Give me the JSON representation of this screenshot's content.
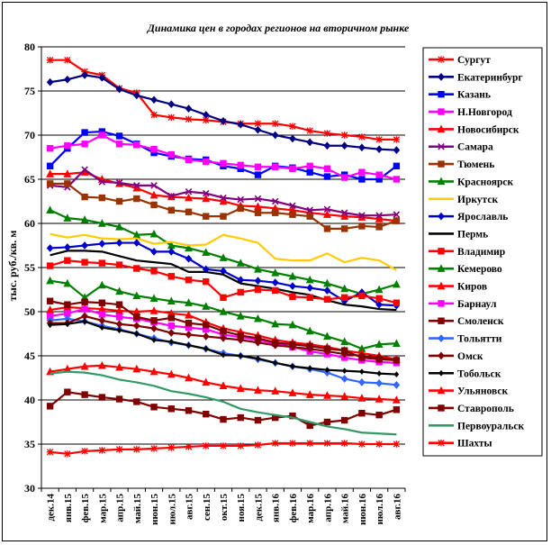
{
  "chart_data": {
    "type": "line",
    "title": "Динамика цен в городах регионов на вторичном рынке",
    "xlabel": "",
    "ylabel": "тыс. руб./кв. м",
    "ylim": [
      30,
      80
    ],
    "yticks": [
      30,
      35,
      40,
      45,
      50,
      55,
      60,
      65,
      70,
      75,
      80
    ],
    "grid": "horizontal",
    "legend_position": "right",
    "categories": [
      "дек.14",
      "янв.15",
      "фев.15",
      "мар.15",
      "апр.15",
      "май.15",
      "июн.15",
      "июл.15",
      "авг.15",
      "сен.15",
      "окт.15",
      "ноя.15",
      "дек.15",
      "янв.16",
      "фев.16",
      "мар.16",
      "апр.16",
      "май.16",
      "июн.16",
      "июл.16",
      "авг.16"
    ],
    "series": [
      {
        "name": "Сургут",
        "color": "#FF0000",
        "marker": "star",
        "values": [
          78.5,
          78.5,
          77.2,
          76.8,
          75.3,
          74.8,
          72.3,
          72.0,
          71.8,
          71.7,
          71.5,
          71.3,
          71.3,
          71.3,
          71.0,
          70.5,
          70.2,
          70.0,
          69.8,
          69.5,
          69.5
        ]
      },
      {
        "name": "Екатеринбург",
        "color": "#000080",
        "marker": "diamond",
        "values": [
          76.0,
          76.3,
          76.8,
          76.5,
          75.2,
          74.5,
          74.0,
          73.5,
          73.0,
          72.3,
          71.6,
          71.2,
          70.6,
          70.0,
          69.6,
          69.2,
          68.8,
          68.8,
          68.6,
          68.4,
          68.3
        ]
      },
      {
        "name": "Казань",
        "color": "#0000FF",
        "marker": "square",
        "values": [
          66.5,
          68.5,
          70.3,
          70.4,
          69.9,
          69.0,
          68.0,
          67.6,
          67.3,
          67.2,
          66.5,
          66.2,
          65.5,
          66.5,
          66.3,
          65.8,
          65.3,
          65.5,
          65.0,
          65.0,
          66.5
        ]
      },
      {
        "name": "Н.Новгород",
        "color": "#FF00FF",
        "marker": "square",
        "values": [
          68.5,
          68.8,
          69.0,
          70.0,
          69.0,
          68.9,
          68.4,
          67.8,
          67.2,
          67.0,
          66.8,
          66.6,
          66.4,
          66.4,
          66.2,
          66.5,
          66.2,
          65.2,
          65.8,
          65.5,
          65.0
        ]
      },
      {
        "name": "Новосибирск",
        "color": "#FF0000",
        "marker": "triangle",
        "values": [
          65.6,
          65.6,
          65.8,
          65.0,
          64.5,
          64.0,
          63.2,
          63.0,
          62.9,
          62.8,
          62.5,
          62.0,
          61.9,
          61.7,
          61.5,
          61.2,
          61.0,
          60.8,
          60.7,
          60.5,
          60.3
        ]
      },
      {
        "name": "Самара",
        "color": "#800080",
        "marker": "x",
        "values": [
          64.3,
          64.1,
          66.1,
          64.7,
          64.6,
          64.3,
          64.3,
          63.1,
          63.6,
          63.4,
          62.9,
          62.7,
          62.8,
          62.5,
          62.0,
          61.5,
          61.6,
          61.2,
          60.9,
          60.9,
          61.0
        ]
      },
      {
        "name": "Тюмень",
        "color": "#993300",
        "marker": "square",
        "values": [
          64.5,
          64.5,
          63.0,
          62.9,
          62.5,
          62.8,
          62.1,
          61.5,
          61.3,
          60.8,
          60.8,
          61.7,
          61.2,
          61.2,
          61.0,
          60.8,
          59.4,
          59.4,
          59.7,
          59.6,
          60.3
        ]
      },
      {
        "name": "Красноярск",
        "color": "#008000",
        "marker": "triangle",
        "values": [
          61.5,
          60.6,
          60.4,
          60.0,
          59.6,
          58.7,
          58.8,
          57.5,
          57.2,
          56.7,
          56.1,
          55.5,
          54.8,
          54.4,
          54.0,
          53.6,
          53.2,
          52.6,
          52.0,
          52.5,
          53.1
        ]
      },
      {
        "name": "Иркутск",
        "color": "#FFCC00",
        "marker": "none",
        "values": [
          58.8,
          58.4,
          58.7,
          58.3,
          58.2,
          58.3,
          57.7,
          57.9,
          57.5,
          57.6,
          58.7,
          58.3,
          57.8,
          56.0,
          55.8,
          55.8,
          56.6,
          55.6,
          56.1,
          55.8,
          54.7
        ]
      },
      {
        "name": "Ярославль",
        "color": "#0000CC",
        "marker": "diamond",
        "values": [
          57.2,
          57.3,
          57.5,
          57.7,
          57.8,
          57.8,
          56.8,
          56.8,
          56.0,
          54.8,
          54.6,
          53.6,
          53.5,
          53.3,
          52.9,
          52.7,
          52.4,
          51.2,
          52.2,
          50.8,
          50.7
        ]
      },
      {
        "name": "Пермь",
        "color": "#000000",
        "marker": "none",
        "values": [
          56.4,
          56.9,
          56.9,
          56.8,
          56.3,
          55.8,
          55.6,
          55.4,
          54.5,
          54.5,
          54.2,
          53.2,
          52.9,
          52.6,
          52.2,
          51.9,
          51.3,
          50.8,
          50.6,
          50.3,
          50.2
        ]
      },
      {
        "name": "Владимир",
        "color": "#FF0000",
        "marker": "square",
        "values": [
          55.2,
          55.8,
          55.6,
          55.5,
          55.3,
          54.9,
          54.6,
          54.0,
          53.6,
          53.4,
          51.6,
          52.2,
          52.5,
          52.4,
          51.7,
          51.6,
          51.4,
          51.6,
          51.8,
          51.5,
          51.0
        ]
      },
      {
        "name": "Кемерово",
        "color": "#008000",
        "marker": "triangle",
        "values": [
          53.5,
          53.2,
          51.6,
          53.0,
          52.3,
          51.8,
          51.5,
          51.2,
          51.0,
          50.6,
          50.0,
          49.5,
          49.2,
          48.6,
          48.5,
          47.8,
          47.2,
          46.6,
          45.8,
          46.3,
          46.4
        ]
      },
      {
        "name": "Киров",
        "color": "#FF0000",
        "marker": "triangle",
        "values": [
          50.2,
          50.5,
          50.4,
          50.3,
          50.1,
          50.0,
          50.1,
          49.8,
          49.6,
          48.8,
          48.1,
          47.7,
          47.3,
          46.8,
          46.5,
          46.3,
          46.0,
          45.6,
          45.3,
          45.0,
          44.6
        ]
      },
      {
        "name": "Барнаул",
        "color": "#FF00FF",
        "marker": "square",
        "values": [
          49.5,
          49.8,
          50.3,
          49.7,
          49.4,
          49.2,
          48.8,
          48.4,
          48.2,
          48.0,
          47.4,
          47.1,
          46.8,
          46.4,
          46.0,
          45.5,
          45.2,
          44.8,
          44.5,
          44.3,
          44.2
        ]
      },
      {
        "name": "Смоленск",
        "color": "#800000",
        "marker": "square",
        "values": [
          51.2,
          50.8,
          51.1,
          51.0,
          50.8,
          49.4,
          49.0,
          49.3,
          48.7,
          48.5,
          47.8,
          47.3,
          47.0,
          46.5,
          46.3,
          46.1,
          45.8,
          45.6,
          44.8,
          44.6,
          44.5
        ]
      },
      {
        "name": "Тольятти",
        "color": "#3366FF",
        "marker": "diamond",
        "values": [
          49.0,
          49.2,
          48.9,
          48.4,
          48.0,
          47.5,
          47.0,
          46.5,
          46.2,
          45.8,
          45.3,
          45.0,
          44.6,
          44.2,
          43.8,
          43.5,
          43.1,
          42.4,
          42.0,
          41.9,
          41.7
        ]
      },
      {
        "name": "Омск",
        "color": "#800000",
        "marker": "diamond",
        "values": [
          48.7,
          48.7,
          49.5,
          49.0,
          48.6,
          48.4,
          48.1,
          47.6,
          47.4,
          47.2,
          47.0,
          46.8,
          46.5,
          46.2,
          46.0,
          45.8,
          45.5,
          45.2,
          45.0,
          44.8,
          44.5
        ]
      },
      {
        "name": "Тобольск",
        "color": "#000000",
        "marker": "diamond-small",
        "values": [
          48.5,
          48.6,
          48.9,
          48.2,
          47.9,
          47.5,
          46.8,
          46.6,
          46.2,
          45.8,
          45.1,
          45.0,
          44.7,
          44.2,
          43.8,
          43.6,
          43.4,
          43.3,
          43.2,
          43.0,
          42.9
        ]
      },
      {
        "name": "Ульяновск",
        "color": "#FF0000",
        "marker": "triangle",
        "values": [
          43.2,
          43.5,
          43.8,
          43.9,
          43.7,
          43.5,
          43.2,
          42.9,
          42.5,
          42.0,
          41.6,
          41.3,
          41.1,
          41.0,
          40.8,
          40.6,
          40.5,
          40.4,
          40.2,
          40.1,
          40.0
        ]
      },
      {
        "name": "Ставрополь",
        "color": "#800000",
        "marker": "square",
        "values": [
          39.3,
          40.9,
          40.6,
          40.3,
          40.1,
          39.8,
          39.2,
          39.0,
          38.8,
          38.4,
          37.8,
          38.0,
          37.7,
          38.0,
          38.2,
          37.1,
          37.5,
          37.7,
          38.5,
          38.3,
          38.9
        ]
      },
      {
        "name": "Первоуральск",
        "color": "#339966",
        "marker": "none",
        "values": [
          43.0,
          43.2,
          43.1,
          42.8,
          42.3,
          42.0,
          41.6,
          41.0,
          40.7,
          40.3,
          39.8,
          39.0,
          38.6,
          38.3,
          38.0,
          37.5,
          37.0,
          36.7,
          36.3,
          36.2,
          36.1
        ]
      },
      {
        "name": "Шахты",
        "color": "#FF0000",
        "marker": "star",
        "values": [
          34.1,
          33.9,
          34.2,
          34.3,
          34.4,
          34.4,
          34.5,
          34.6,
          34.7,
          34.8,
          34.8,
          34.8,
          34.9,
          35.1,
          35.1,
          35.1,
          35.1,
          35.1,
          35.0,
          35.0,
          35.0
        ]
      }
    ]
  }
}
